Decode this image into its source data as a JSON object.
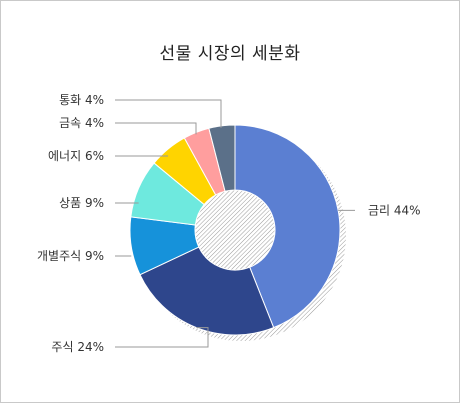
{
  "chart_data": {
    "type": "pie",
    "donut": true,
    "title": "선물 시장의 세분화",
    "slices": [
      {
        "label": "금리",
        "value": 44,
        "display": "44%",
        "color": "#5B7FD2"
      },
      {
        "label": "주식",
        "value": 24,
        "display": "24%",
        "color": "#2E468C"
      },
      {
        "label": "개별주식",
        "value": 9,
        "display": "9%",
        "color": "#1692DA"
      },
      {
        "label": "상품",
        "value": 9,
        "display": "9%",
        "color": "#6EE9DE"
      },
      {
        "label": "에너지",
        "value": 6,
        "display": "6%",
        "color": "#FFD400"
      },
      {
        "label": "금속",
        "value": 4,
        "display": "4%",
        "color": "#FF9E9E"
      },
      {
        "label": "통화",
        "value": 4,
        "display": "4%",
        "color": "#5B7089"
      }
    ],
    "legend": "none"
  }
}
